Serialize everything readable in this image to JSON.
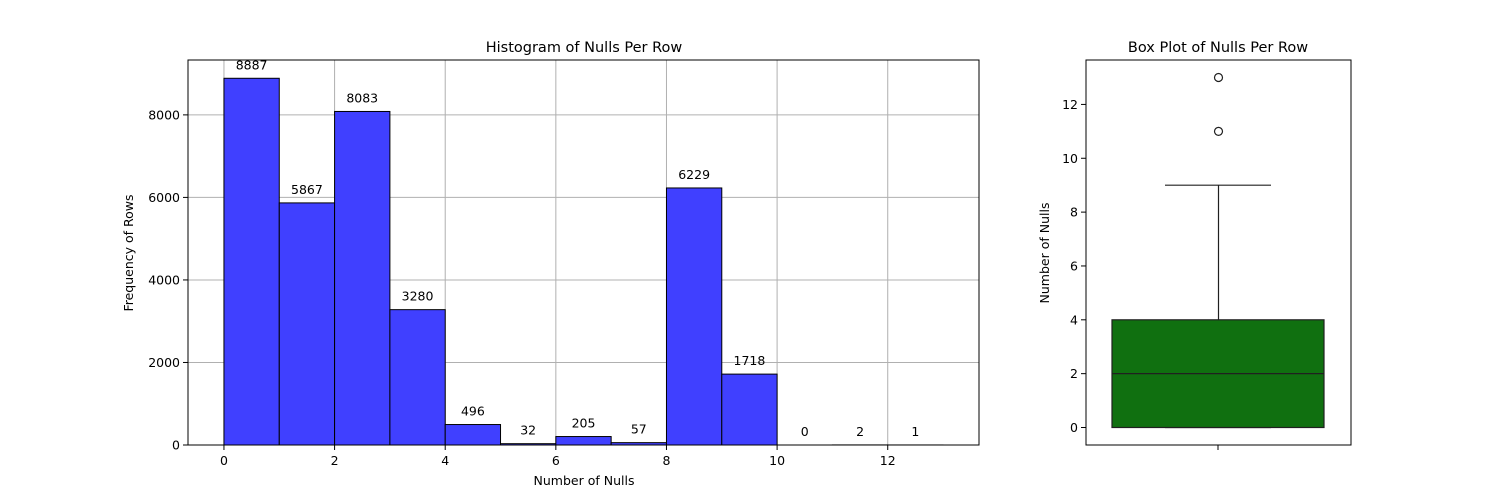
{
  "chart_data": [
    {
      "type": "bar",
      "title": "Histogram of Nulls Per Row",
      "xlabel": "Number of Nulls",
      "ylabel": "Frequency of Rows",
      "bin_edges": [
        0,
        1,
        2,
        3,
        4,
        5,
        6,
        7,
        8,
        9,
        10,
        11,
        12,
        13
      ],
      "values": [
        8887,
        5867,
        8083,
        3280,
        496,
        32,
        205,
        57,
        6229,
        1718,
        0,
        2,
        1
      ],
      "value_labels": [
        "8887",
        "5867",
        "8083",
        "3280",
        "496",
        "32",
        "205",
        "57",
        "6229",
        "1718",
        "0",
        "2",
        "1"
      ],
      "xlim": [
        -0.65,
        13.65
      ],
      "ylim": [
        0,
        9330
      ],
      "xticks": [
        0,
        2,
        4,
        6,
        8,
        10,
        12
      ],
      "xtick_labels": [
        "0",
        "2",
        "4",
        "6",
        "8",
        "10",
        "12"
      ],
      "yticks": [
        0,
        2000,
        4000,
        6000,
        8000
      ],
      "ytick_labels": [
        "0",
        "2000",
        "4000",
        "6000",
        "8000"
      ],
      "grid": true,
      "bar_color": "#4040ff"
    },
    {
      "type": "box",
      "title": "Box Plot of Nulls Per Row",
      "ylabel": "Number of Nulls",
      "min": 0,
      "q1": 0,
      "median": 2,
      "q3": 4,
      "max": 9,
      "outliers": [
        11,
        13
      ],
      "ylim": [
        -0.65,
        13.65
      ],
      "yticks": [
        0,
        2,
        4,
        6,
        8,
        10,
        12
      ],
      "ytick_labels": [
        "0",
        "2",
        "4",
        "6",
        "8",
        "10",
        "12"
      ],
      "grid": false,
      "box_color": "#107010"
    }
  ]
}
